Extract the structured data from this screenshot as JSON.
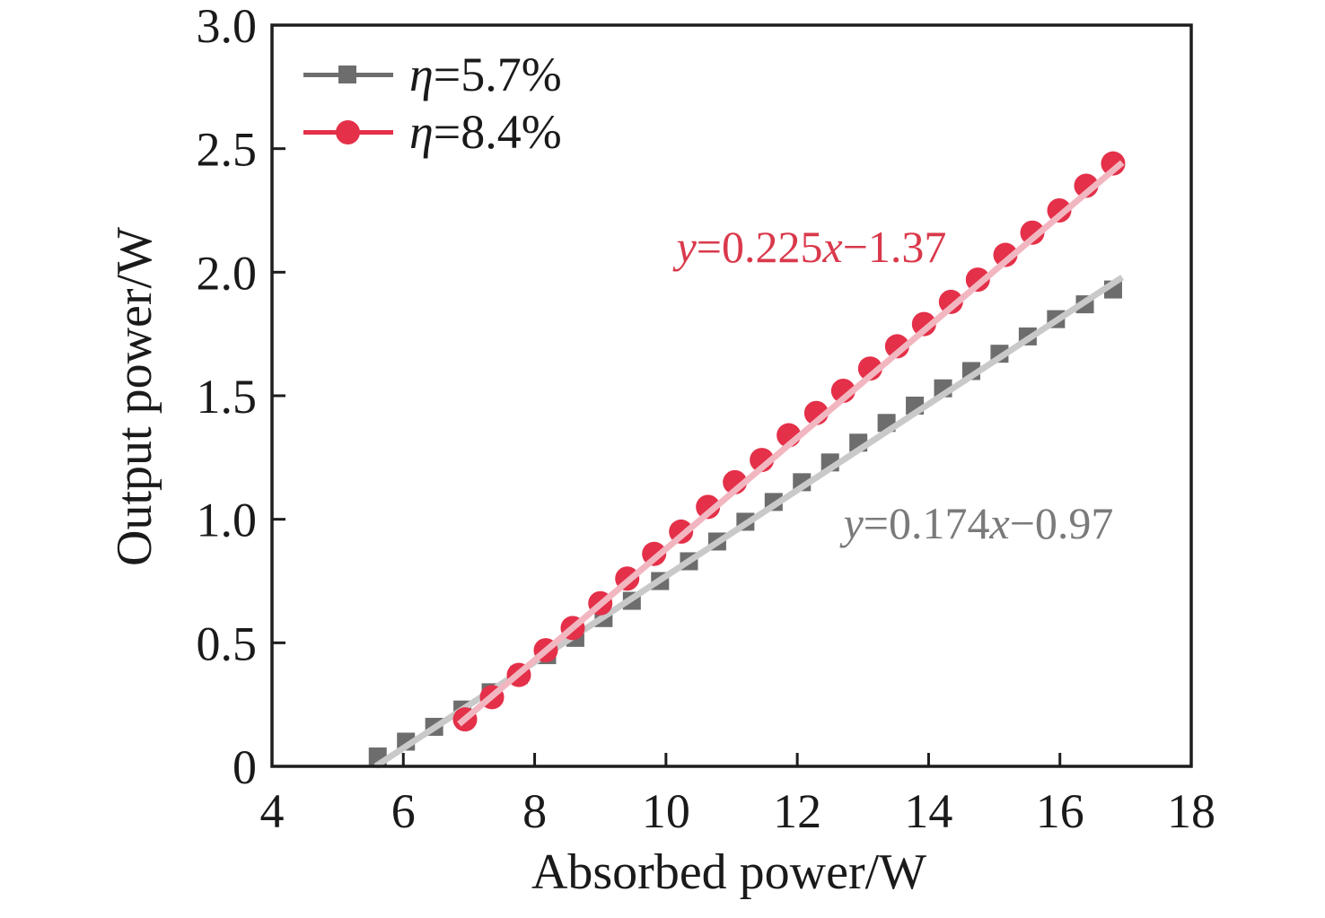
{
  "figure": {
    "background": "#ffffff",
    "frame_color": "#1d1d1d",
    "text_color": "#1a1a1a"
  },
  "axes": {
    "x_label": "Absorbed power/W",
    "y_label": "Output power/W"
  },
  "legend": {
    "position": "top-left-inside",
    "items": [
      {
        "var": "η",
        "rest": "=5.7%",
        "full": "η=5.7%",
        "marker": "square",
        "color": "#6d6d6d"
      },
      {
        "var": "η",
        "rest": "=8.4%",
        "full": "η=8.4%",
        "marker": "circle",
        "color": "#e43049"
      }
    ]
  },
  "equations": {
    "red": {
      "var1": "y",
      "mid": "=0.225",
      "var2": "x",
      "tail": "−1.37",
      "full": "y=0.225x−1.37",
      "color": "#d9394b"
    },
    "gray": {
      "var1": "y",
      "mid": "=0.174",
      "var2": "x",
      "tail": "−0.97",
      "full": "y=0.174x−0.97",
      "color": "#7a7a7a"
    }
  },
  "chart_data": {
    "type": "scatter",
    "title": "",
    "xlabel": "Absorbed power/W",
    "ylabel": "Output power/W",
    "xlim": [
      4,
      18
    ],
    "ylim": [
      0,
      3.0
    ],
    "x_ticks": [
      4,
      6,
      8,
      10,
      12,
      14,
      16,
      18
    ],
    "x_tick_labels": [
      "4",
      "6",
      "8",
      "10",
      "12",
      "14",
      "16",
      "18"
    ],
    "y_ticks": [
      0,
      0.5,
      1.0,
      1.5,
      2.0,
      2.5,
      3.0
    ],
    "y_tick_labels": [
      "0",
      "0.5",
      "1.0",
      "1.5",
      "2.0",
      "2.5",
      "3.0"
    ],
    "grid": false,
    "legend_position": "top-left-inside",
    "series": [
      {
        "name": "η=5.7%",
        "marker": "square",
        "marker_size": 20,
        "color": "#6d6d6d",
        "fit_line_color": "#c9c9c9",
        "fit": {
          "equation": "y=0.174x−0.97",
          "slope": 0.174,
          "intercept": -0.97,
          "x_start": 5.58,
          "x_end": 16.95
        },
        "points": [
          [
            5.61,
            0.04
          ],
          [
            6.04,
            0.1
          ],
          [
            6.47,
            0.16
          ],
          [
            6.9,
            0.23
          ],
          [
            7.33,
            0.3
          ],
          [
            7.76,
            0.37
          ],
          [
            8.19,
            0.45
          ],
          [
            8.62,
            0.52
          ],
          [
            9.05,
            0.6
          ],
          [
            9.48,
            0.67
          ],
          [
            9.91,
            0.75
          ],
          [
            10.35,
            0.83
          ],
          [
            10.78,
            0.91
          ],
          [
            11.21,
            0.99
          ],
          [
            11.64,
            1.07
          ],
          [
            12.07,
            1.15
          ],
          [
            12.5,
            1.23
          ],
          [
            12.93,
            1.31
          ],
          [
            13.36,
            1.39
          ],
          [
            13.79,
            1.46
          ],
          [
            14.22,
            1.53
          ],
          [
            14.65,
            1.6
          ],
          [
            15.08,
            1.67
          ],
          [
            15.51,
            1.74
          ],
          [
            15.94,
            1.81
          ],
          [
            16.38,
            1.87
          ],
          [
            16.81,
            1.93
          ]
        ]
      },
      {
        "name": "η=8.4%",
        "marker": "circle",
        "marker_size": 26,
        "color": "#e43049",
        "fit_line_color": "#f2b6c0",
        "fit": {
          "equation": "y=0.225x−1.37",
          "slope": 0.225,
          "intercept": -1.37,
          "x_start": 6.85,
          "x_end": 16.95
        },
        "points": [
          [
            6.94,
            0.19
          ],
          [
            7.35,
            0.28
          ],
          [
            7.76,
            0.37
          ],
          [
            8.17,
            0.47
          ],
          [
            8.58,
            0.56
          ],
          [
            9.0,
            0.66
          ],
          [
            9.41,
            0.76
          ],
          [
            9.82,
            0.86
          ],
          [
            10.23,
            0.95
          ],
          [
            10.64,
            1.05
          ],
          [
            11.05,
            1.15
          ],
          [
            11.46,
            1.24
          ],
          [
            11.87,
            1.34
          ],
          [
            12.29,
            1.43
          ],
          [
            12.7,
            1.52
          ],
          [
            13.11,
            1.61
          ],
          [
            13.52,
            1.7
          ],
          [
            13.93,
            1.79
          ],
          [
            14.34,
            1.88
          ],
          [
            14.75,
            1.97
          ],
          [
            15.17,
            2.07
          ],
          [
            15.58,
            2.16
          ],
          [
            15.99,
            2.25
          ],
          [
            16.4,
            2.35
          ],
          [
            16.81,
            2.44
          ]
        ]
      }
    ]
  }
}
